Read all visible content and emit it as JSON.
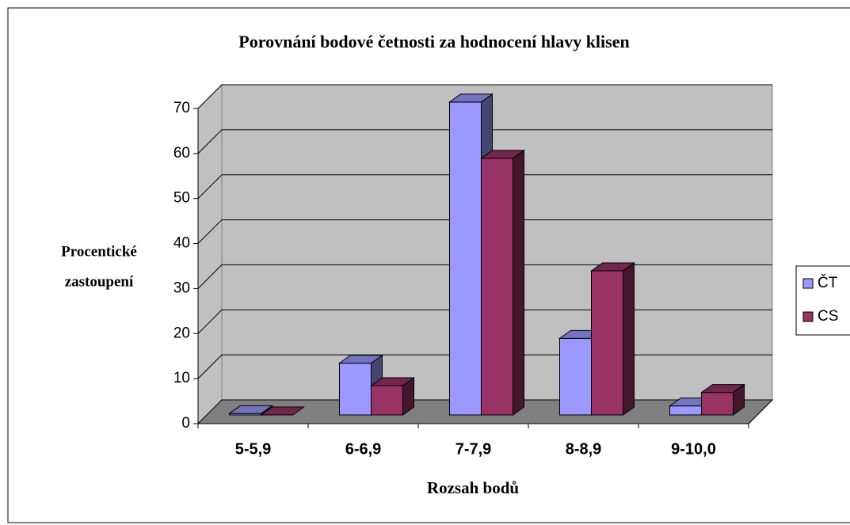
{
  "chart_data": {
    "type": "bar3d",
    "title": "Porovnání bodové četnosti za hodnocení hlavy klisen",
    "x_label": "Rozsah bodů",
    "y_label": [
      "Procentické",
      "zastoupení"
    ],
    "categories": [
      "5-5,9",
      "6-6,9",
      "7-7,9",
      "8-8,9",
      "9-10,0"
    ],
    "series": [
      {
        "name": "ČT",
        "color": "#9999ff",
        "values": [
          0.3,
          11.5,
          69.5,
          17,
          2
        ]
      },
      {
        "name": "CS",
        "color": "#993366",
        "values": [
          0,
          6.5,
          57,
          32,
          5
        ]
      }
    ],
    "ylim": [
      0,
      70
    ],
    "yticks": [
      0,
      10,
      20,
      30,
      40,
      50,
      60,
      70
    ],
    "grid": true,
    "legend": "right"
  }
}
